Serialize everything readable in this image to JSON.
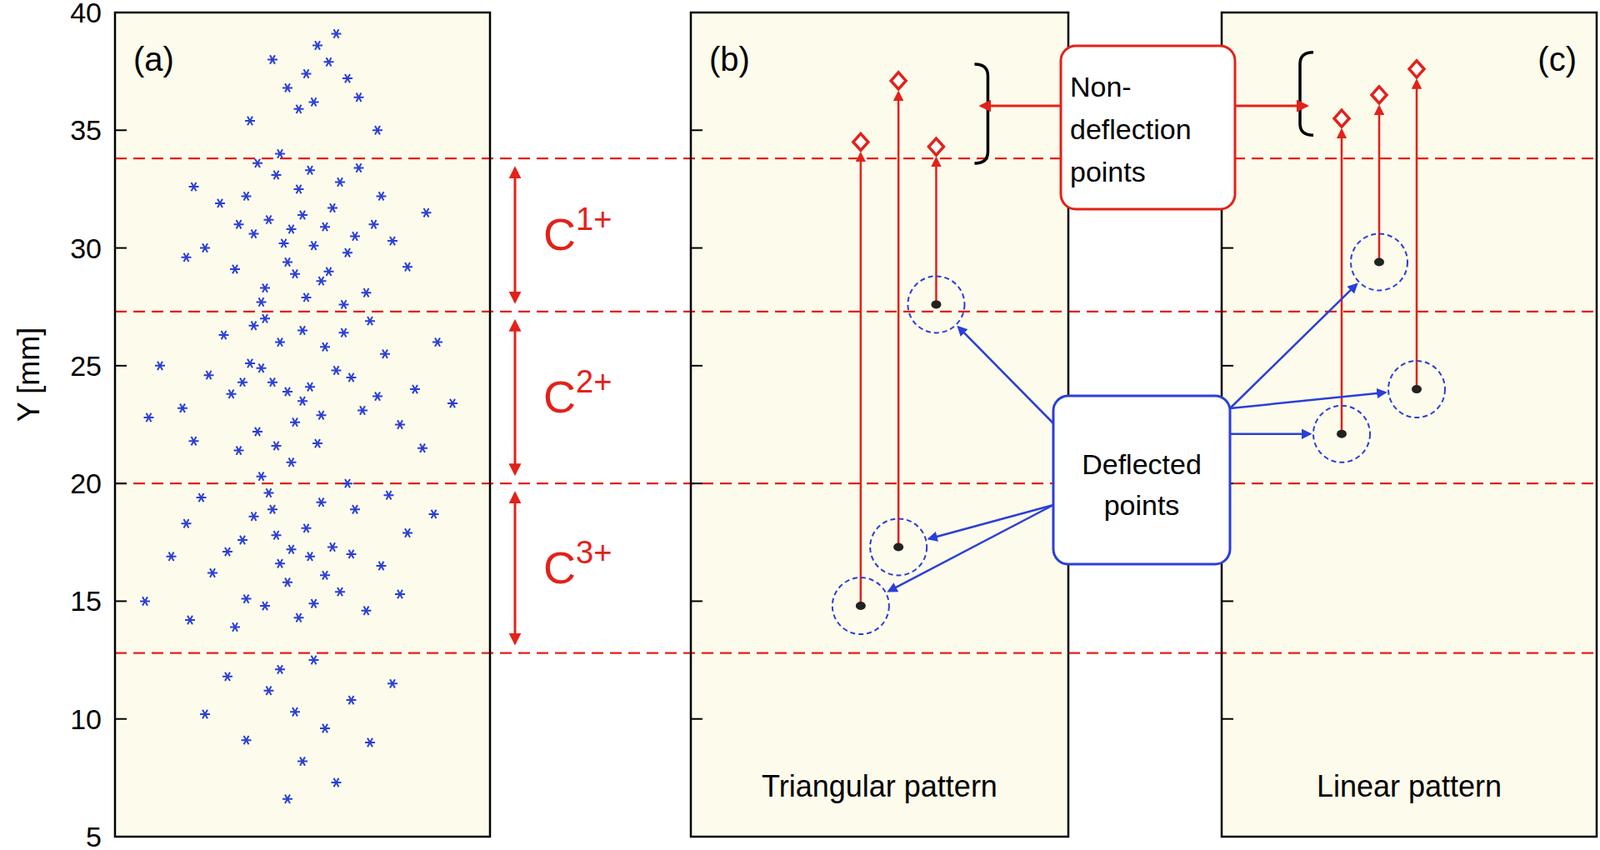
{
  "chart_data": [
    {
      "type": "scatter",
      "title": "(a)",
      "ylabel": "Y [mm]",
      "marker": "asterisk",
      "color": "#2a3fd9",
      "x": [
        4.1,
        5.3,
        4.6,
        5.8,
        3.7,
        6.2,
        4.9,
        5.5,
        3.2,
        6.9,
        4.3,
        5.1,
        2.8,
        7.4,
        4.0,
        6.0,
        3.5,
        5.7,
        4.7,
        2.4,
        7.8,
        6.5,
        3.9,
        5.0,
        8.3,
        1.9,
        4.4,
        6.7,
        4.5,
        5.6,
        3.3,
        6.4,
        4.8,
        5.2,
        2.1,
        7.1,
        3.8,
        6.1,
        4.2,
        5.0,
        3.6,
        5.9,
        4.8,
        3.1,
        6.6,
        4.4,
        2.5,
        7.2,
        5.4,
        3.8,
        6.1,
        1.8,
        8.0,
        4.0,
        5.6,
        2.9,
        7.6,
        4.7,
        3.3,
        6.8,
        1.2,
        9.0,
        5.2,
        0.9,
        8.6,
        3.9,
        4.6,
        5.5,
        3.4,
        6.3,
        4.3,
        5.0,
        2.1,
        7.0,
        3.7,
        8.2,
        4.3,
        5.2,
        3.7,
        5.8,
        4.6,
        3.0,
        6.4,
        4.1,
        2.6,
        7.1,
        5.5,
        3.5,
        6.0,
        1.9,
        7.8,
        4.9,
        2.3,
        6.7,
        4.4,
        5.1,
        0.8,
        8.5,
        3.2,
        6.2,
        1.5,
        4.0,
        4.7,
        5.6,
        3.4,
        6.3,
        4.2,
        5.3,
        2.0,
        7.3,
        3.9,
        7.6,
        5.1,
        5.7,
        4.6,
        6.2,
        5.4,
        4.9,
        6.5,
        5.9,
        4.2,
        3.6,
        7.0,
        5.3,
        4.8,
        5.6,
        4.1,
        6.3,
        3.5,
        5.0,
        4.4,
        6.8,
        3.0,
        5.9,
        4.6,
        7.4,
        2.4,
        5.3
      ],
      "values": [
        31.2,
        30.1,
        29.4,
        31.7,
        30.6,
        29.8,
        32.5,
        28.6,
        29.1,
        31.0,
        33.1,
        27.9,
        31.9,
        30.3,
        28.3,
        32.8,
        32.2,
        29.0,
        30.8,
        30.0,
        29.2,
        33.4,
        27.7,
        31.4,
        31.5,
        29.6,
        34.0,
        28.1,
        30.2,
        30.9,
        31.0,
        30.5,
        28.9,
        33.3,
        32.6,
        32.2,
        33.6,
        27.6,
        24.3,
        23.5,
        25.1,
        24.8,
        22.6,
        23.8,
        23.1,
        26.0,
        24.6,
        25.5,
        21.7,
        22.2,
        26.4,
        23.2,
        24.0,
        27.0,
        25.8,
        26.3,
        22.5,
        20.9,
        21.4,
        26.9,
        25.0,
        23.4,
        24.1,
        22.8,
        26.0,
        24.9,
        23.9,
        22.9,
        24.3,
        24.5,
        21.6,
        26.5,
        21.8,
        23.7,
        26.7,
        21.5,
        17.8,
        16.9,
        18.6,
        17.3,
        15.8,
        17.1,
        18.9,
        19.6,
        16.2,
        16.5,
        19.2,
        15.1,
        15.4,
        18.3,
        17.9,
        14.3,
        19.4,
        14.6,
        16.6,
        18.1,
        15.0,
        18.7,
        13.9,
        20.0,
        16.9,
        14.8,
        17.2,
        16.1,
        17.6,
        17.0,
        18.9,
        14.9,
        14.2,
        19.5,
        20.3,
        15.3,
        37.4,
        37.9,
        36.8,
        37.2,
        38.6,
        35.9,
        36.4,
        39.1,
        38.0,
        35.4,
        35.0,
        36.2,
        10.3,
        9.6,
        11.2,
        10.8,
        9.1,
        8.2,
        12.1,
        9.0,
        11.8,
        7.3,
        6.6,
        11.5,
        10.2,
        12.5
      ],
      "xlim": [
        0,
        10
      ],
      "ylim": [
        5,
        40
      ],
      "yticks": [
        5,
        10,
        15,
        20,
        25,
        30,
        35,
        40
      ],
      "tick_labels": "y",
      "grid": false,
      "boundaries": [
        33.8,
        27.3,
        20.0,
        12.8
      ],
      "bands": [
        {
          "label": "C",
          "charge": "1+"
        },
        {
          "label": "C",
          "charge": "2+"
        },
        {
          "label": "C",
          "charge": "3+"
        }
      ]
    },
    {
      "type": "scatter",
      "title": "(b)",
      "subtitle": "Triangular pattern",
      "x": [
        4.5,
        5.5,
        6.5
      ],
      "series": [
        {
          "color": "#222222",
          "marker": "dot",
          "values": [
            14.8,
            17.3,
            27.6
          ]
        },
        {
          "color": "#e32119",
          "marker": "diamond",
          "values": [
            34.5,
            37.1,
            34.3
          ]
        }
      ],
      "xlim": [
        0,
        10
      ],
      "ylim": [
        5,
        40
      ],
      "yticks": [
        10,
        15,
        20,
        25,
        30,
        35
      ],
      "tick_labels": false,
      "grid": false
    },
    {
      "type": "scatter",
      "title": "(c)",
      "subtitle": "Linear pattern",
      "x": [
        3.2,
        4.2,
        5.2
      ],
      "series": [
        {
          "color": "#222222",
          "marker": "dot",
          "values": [
            22.1,
            29.4,
            24.0
          ]
        },
        {
          "color": "#e32119",
          "marker": "diamond",
          "values": [
            35.5,
            36.5,
            37.6
          ]
        }
      ],
      "xlim": [
        0,
        10
      ],
      "ylim": [
        5,
        40
      ],
      "yticks": [
        10,
        15,
        20,
        25,
        30,
        35
      ],
      "tick_labels": false,
      "grid": false
    }
  ],
  "callouts": {
    "non_deflection": [
      "Non-",
      "deflection",
      "points"
    ],
    "deflected": [
      "Deflected",
      "points"
    ]
  }
}
